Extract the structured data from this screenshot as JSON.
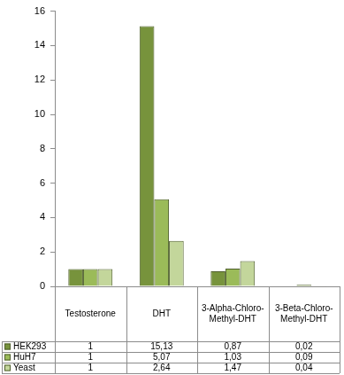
{
  "chart_data": {
    "type": "bar",
    "categories": [
      "Testosterone",
      "DHT",
      "3-Alpha-Chloro-Methyl-DHT",
      "3-Beta-Chloro-Methyl-DHT"
    ],
    "series": [
      {
        "name": "HEK293",
        "color": "#77933c",
        "values": [
          1,
          15.13,
          0.87,
          0.02
        ],
        "value_labels": [
          "1",
          "15,13",
          "0,87",
          "0,02"
        ]
      },
      {
        "name": "HuH7",
        "color": "#9bbb59",
        "values": [
          1,
          5.07,
          1.03,
          0.09
        ],
        "value_labels": [
          "1",
          "5,07",
          "1,03",
          "0,09"
        ]
      },
      {
        "name": "Yeast",
        "color": "#c3d69b",
        "values": [
          1,
          2.64,
          1.47,
          0.04
        ],
        "value_labels": [
          "1",
          "2,64",
          "1,47",
          "0,04"
        ]
      }
    ],
    "ylim": [
      0,
      16
    ],
    "yticks": [
      0,
      2,
      4,
      6,
      8,
      10,
      12,
      14,
      16
    ],
    "grid": false
  }
}
